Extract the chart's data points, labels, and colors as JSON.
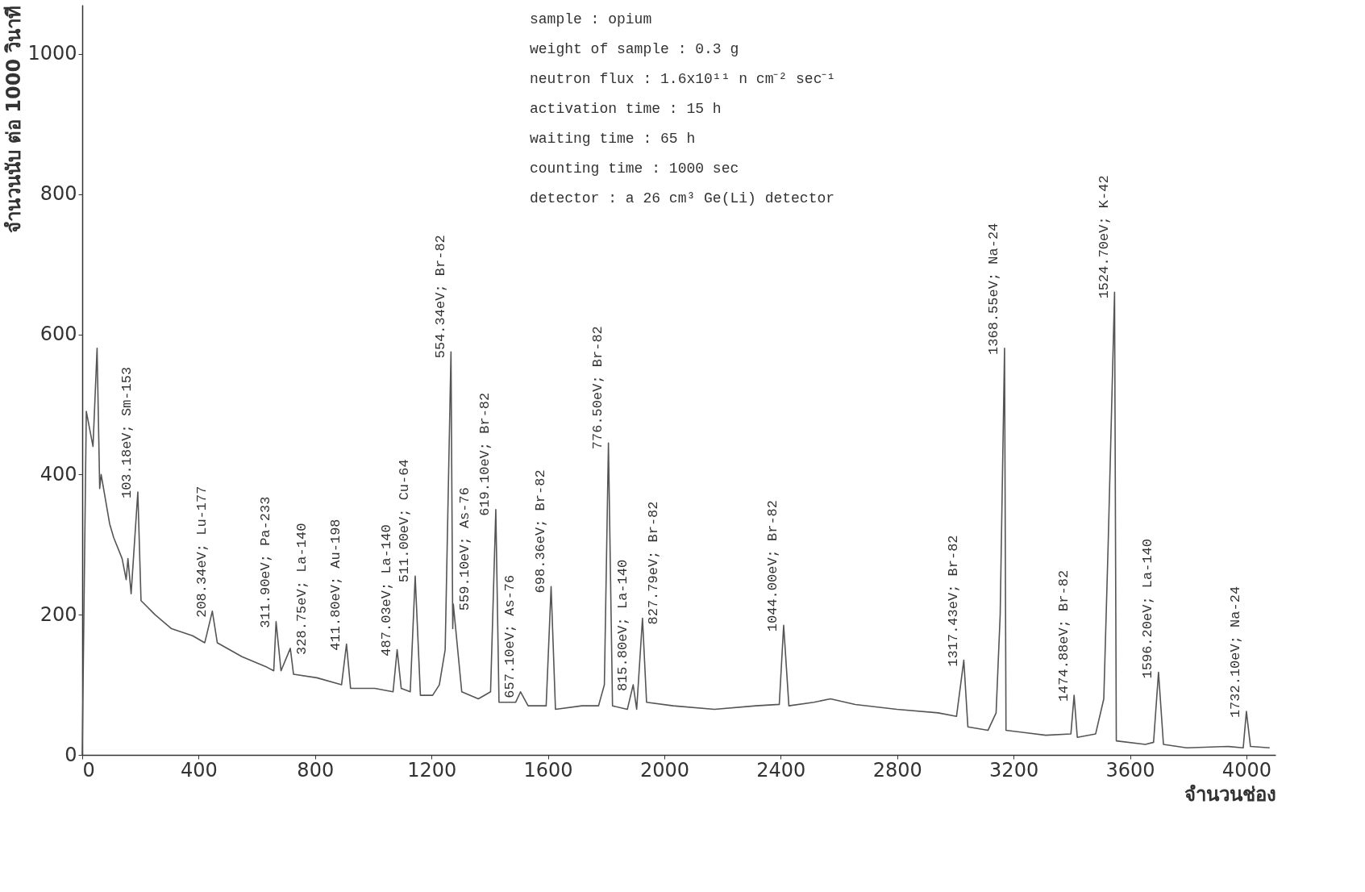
{
  "chart_data": {
    "type": "line",
    "xlabel": "จำนวนช่อง",
    "ylabel": "จำนวนนับ ต่อ 1000 วินาที",
    "x": [
      0,
      14,
      37,
      51,
      60,
      65,
      94,
      108,
      137,
      151,
      157,
      168,
      191,
      202,
      250,
      307,
      379,
      421,
      447,
      464,
      549,
      635,
      658,
      666,
      683,
      715,
      726,
      806,
      891,
      908,
      922,
      1005,
      1068,
      1082,
      1096,
      1127,
      1144,
      1162,
      1204,
      1227,
      1247,
      1267,
      1273,
      1275,
      1304,
      1361,
      1403,
      1421,
      1432,
      1489,
      1506,
      1532,
      1594,
      1611,
      1626,
      1717,
      1774,
      1794,
      1808,
      1822,
      1873,
      1893,
      1905,
      1925,
      1939,
      2030,
      2172,
      2315,
      2395,
      2410,
      2428,
      2514,
      2571,
      2656,
      2799,
      2941,
      3004,
      3029,
      3043,
      3112,
      3140,
      3154,
      3169,
      3174,
      3311,
      3397,
      3408,
      3419,
      3482,
      3510,
      3525,
      3547,
      3553,
      3653,
      3681,
      3698,
      3715,
      3795,
      3937,
      3989,
      4000,
      4014,
      4080
    ],
    "series": [
      {
        "color": "#555555",
        "values": [
          0,
          490,
          440,
          580,
          380,
          400,
          330,
          310,
          280,
          250,
          280,
          230,
          375,
          220,
          200,
          180,
          170,
          160,
          205,
          160,
          140,
          125,
          120,
          190,
          120,
          152,
          115,
          110,
          100,
          158,
          95,
          95,
          90,
          150,
          95,
          90,
          255,
          85,
          85,
          100,
          150,
          575,
          180,
          215,
          90,
          80,
          90,
          350,
          75,
          75,
          90,
          70,
          70,
          240,
          65,
          70,
          70,
          100,
          445,
          70,
          65,
          100,
          65,
          195,
          75,
          70,
          65,
          70,
          72,
          185,
          70,
          75,
          80,
          72,
          65,
          60,
          55,
          135,
          40,
          35,
          60,
          200,
          580,
          35,
          28,
          30,
          85,
          25,
          30,
          80,
          300,
          660,
          20,
          15,
          18,
          118,
          15,
          10,
          12,
          10,
          62,
          12,
          10
        ]
      }
    ],
    "xlim": [
      0,
      4100
    ],
    "ylim": [
      0,
      1070
    ],
    "xticks": [
      0,
      400,
      800,
      1200,
      1600,
      2000,
      2400,
      2800,
      3200,
      3600,
      4000
    ],
    "yticks": [
      0,
      200,
      400,
      600,
      800,
      1000
    ],
    "grid": false,
    "marker": "none",
    "line_style": "solid",
    "annotations": [
      {
        "text": "103.18eV; Sm-153",
        "x": 191,
        "y": 375
      },
      {
        "text": "208.34eV; Lu-177",
        "x": 447,
        "y": 205
      },
      {
        "text": "311.90eV; Pa-233",
        "x": 666,
        "y": 190
      },
      {
        "text": "328.75eV; La-140",
        "x": 715,
        "y": 152
      },
      {
        "text": "411.80eV; Au-198",
        "x": 908,
        "y": 158
      },
      {
        "text": "487.03eV; La-140",
        "x": 1082,
        "y": 150
      },
      {
        "text": "511.00eV; Cu-64",
        "x": 1144,
        "y": 255
      },
      {
        "text": "554.34eV; Br-82",
        "x": 1267,
        "y": 575
      },
      {
        "text": "559.10eV; As-76",
        "x": 1275,
        "y": 215
      },
      {
        "text": "619.10eV; Br-82",
        "x": 1421,
        "y": 350
      },
      {
        "text": "657.10eV; As-76",
        "x": 1506,
        "y": 90
      },
      {
        "text": "698.36eV; Br-82",
        "x": 1611,
        "y": 240
      },
      {
        "text": "776.50eV; Br-82",
        "x": 1808,
        "y": 445
      },
      {
        "text": "815.80eV; La-140",
        "x": 1893,
        "y": 100
      },
      {
        "text": "827.79eV; Br-82",
        "x": 1925,
        "y": 195
      },
      {
        "text": "1044.00eV; Br-82",
        "x": 2410,
        "y": 185
      },
      {
        "text": "1317.43eV; Br-82",
        "x": 3029,
        "y": 135
      },
      {
        "text": "1368.55eV; Na-24",
        "x": 3169,
        "y": 580
      },
      {
        "text": "1474.88eV; Br-82",
        "x": 3408,
        "y": 85
      },
      {
        "text": "1524.70eV; K-42",
        "x": 3547,
        "y": 660
      },
      {
        "text": "1596.20eV; La-140",
        "x": 3698,
        "y": 118
      },
      {
        "text": "1732.10eV; Na-24",
        "x": 4000,
        "y": 62
      },
      "sample : opium",
      "weight of sample : 0.3 g",
      "neutron flux : 1.6x10¹¹ n cm⁻² sec⁻¹",
      "activation time : 15 h",
      "waiting time : 65 h",
      "counting time : 1000 sec",
      "detector : a 26 cm³ Ge(Li) detector"
    ]
  }
}
